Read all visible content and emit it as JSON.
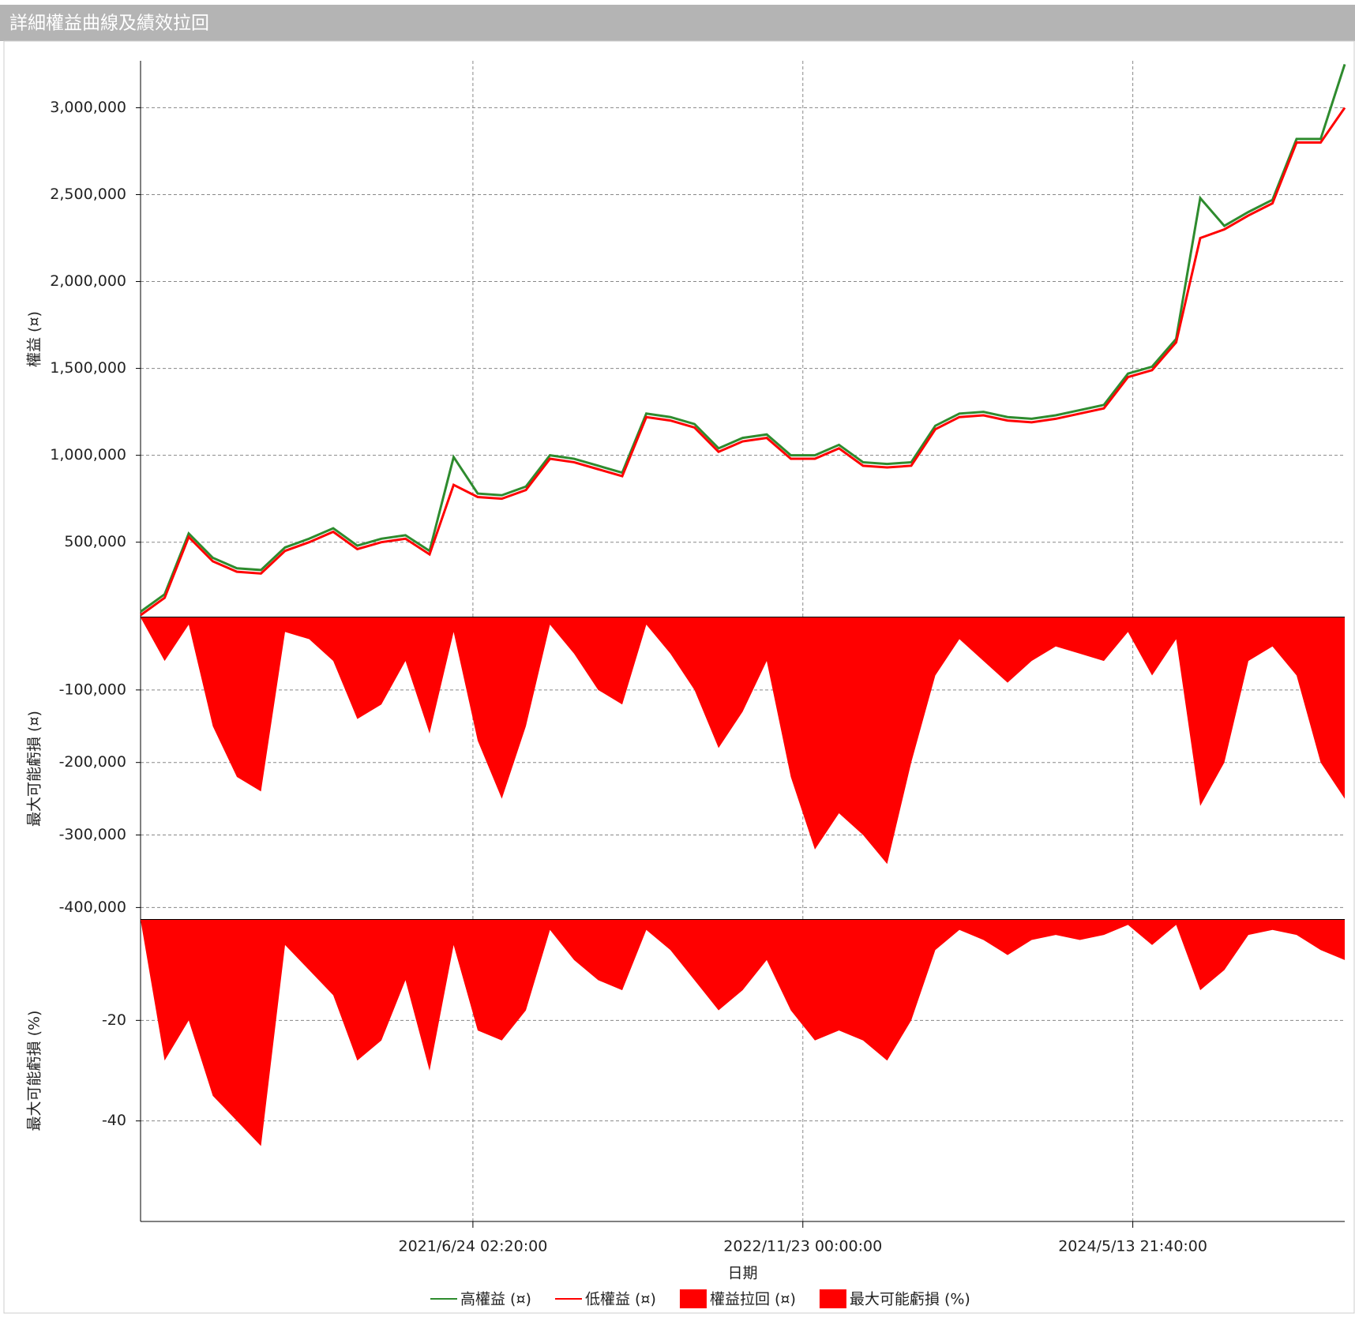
{
  "chart_data": [
    {
      "type": "line",
      "title": "詳細權益曲線及績效拉回",
      "ylabel": "權益 (¤)",
      "x": [
        0,
        2,
        4,
        6,
        8,
        10,
        12,
        14,
        16,
        18,
        20,
        22,
        24,
        26,
        28,
        30,
        32,
        34,
        36,
        38,
        40,
        42,
        44,
        46,
        48,
        50,
        52,
        54,
        56,
        58,
        60,
        62,
        64,
        66,
        68,
        70,
        72,
        74,
        76,
        78,
        80,
        82,
        84,
        86,
        88,
        90,
        92,
        94,
        96,
        98,
        100
      ],
      "xlim": [
        0,
        100
      ],
      "xticks": [
        27.6,
        55.0,
        82.4
      ],
      "ylim": [
        67000,
        3270000
      ],
      "yticks": [
        {
          "value": 500000,
          "label": "500,000"
        },
        {
          "value": 1000000,
          "label": "1,000,000"
        },
        {
          "value": 1500000,
          "label": "1,500,000"
        },
        {
          "value": 2000000,
          "label": "2,000,000"
        },
        {
          "value": 2500000,
          "label": "2,500,000"
        },
        {
          "value": 3000000,
          "label": "3,000,000"
        }
      ],
      "grid": true,
      "series": [
        {
          "name": "高權益 (¤)",
          "color": "#2e8b2e",
          "values": [
            100000,
            200000,
            550000,
            410000,
            350000,
            340000,
            470000,
            520000,
            580000,
            480000,
            520000,
            540000,
            450000,
            990000,
            780000,
            770000,
            820000,
            1000000,
            980000,
            940000,
            900000,
            1240000,
            1220000,
            1180000,
            1040000,
            1100000,
            1120000,
            1000000,
            1000000,
            1060000,
            960000,
            950000,
            960000,
            1170000,
            1240000,
            1250000,
            1220000,
            1210000,
            1230000,
            1260000,
            1290000,
            1470000,
            1510000,
            1670000,
            2480000,
            2320000,
            2400000,
            2470000,
            2820000,
            2820000,
            3250000
          ]
        },
        {
          "name": "低權益 (¤)",
          "color": "#ff0000",
          "values": [
            80000,
            180000,
            530000,
            390000,
            330000,
            320000,
            450000,
            500000,
            560000,
            460000,
            500000,
            520000,
            430000,
            830000,
            760000,
            750000,
            800000,
            980000,
            960000,
            920000,
            880000,
            1220000,
            1200000,
            1160000,
            1020000,
            1080000,
            1100000,
            980000,
            980000,
            1040000,
            940000,
            930000,
            940000,
            1150000,
            1220000,
            1230000,
            1200000,
            1190000,
            1210000,
            1240000,
            1270000,
            1450000,
            1490000,
            1650000,
            2250000,
            2300000,
            2380000,
            2450000,
            2800000,
            2800000,
            3000000
          ]
        }
      ]
    },
    {
      "type": "area",
      "ylabel": "最大可能虧損 (¤)",
      "x": [
        0,
        2,
        4,
        6,
        8,
        10,
        12,
        14,
        16,
        18,
        20,
        22,
        24,
        26,
        28,
        30,
        32,
        34,
        36,
        38,
        40,
        42,
        44,
        46,
        48,
        50,
        52,
        54,
        56,
        58,
        60,
        62,
        64,
        66,
        68,
        70,
        72,
        74,
        76,
        78,
        80,
        82,
        84,
        86,
        88,
        90,
        92,
        94,
        96,
        98,
        100
      ],
      "xlim": [
        0,
        100
      ],
      "xticks": [
        27.6,
        55.0,
        82.4
      ],
      "ylim": [
        -417000,
        0
      ],
      "yticks": [
        {
          "value": -100000,
          "label": "-100,000"
        },
        {
          "value": -200000,
          "label": "-200,000"
        },
        {
          "value": -300000,
          "label": "-300,000"
        },
        {
          "value": -400000,
          "label": "-400,000"
        }
      ],
      "grid": true,
      "series": [
        {
          "name": "權益拉回 (¤)",
          "color": "#ff0000",
          "values": [
            0,
            -60000,
            -10000,
            -150000,
            -220000,
            -240000,
            -20000,
            -30000,
            -60000,
            -140000,
            -120000,
            -60000,
            -160000,
            -20000,
            -170000,
            -250000,
            -150000,
            -10000,
            -50000,
            -100000,
            -120000,
            -10000,
            -50000,
            -100000,
            -180000,
            -130000,
            -60000,
            -220000,
            -320000,
            -270000,
            -300000,
            -340000,
            -200000,
            -80000,
            -30000,
            -60000,
            -90000,
            -60000,
            -40000,
            -50000,
            -60000,
            -20000,
            -80000,
            -30000,
            -260000,
            -200000,
            -60000,
            -40000,
            -80000,
            -200000,
            -250000
          ]
        }
      ]
    },
    {
      "type": "area",
      "ylabel": "最大可能虧損 (%)",
      "xlabel": "日期",
      "x": [
        0,
        2,
        4,
        6,
        8,
        10,
        12,
        14,
        16,
        18,
        20,
        22,
        24,
        26,
        28,
        30,
        32,
        34,
        36,
        38,
        40,
        42,
        44,
        46,
        48,
        50,
        52,
        54,
        56,
        58,
        60,
        62,
        64,
        66,
        68,
        70,
        72,
        74,
        76,
        78,
        80,
        82,
        84,
        86,
        88,
        90,
        92,
        94,
        96,
        98,
        100
      ],
      "xlim": [
        0,
        100
      ],
      "xticks": [
        {
          "value": 27.6,
          "label": "2021/6/24 02:20:00"
        },
        {
          "value": 55.0,
          "label": "2022/11/23 00:00:00"
        },
        {
          "value": 82.4,
          "label": "2024/5/13 21:40:00"
        }
      ],
      "ylim": [
        -60,
        0
      ],
      "yticks": [
        -20,
        -40
      ],
      "grid": true,
      "series": [
        {
          "name": "最大可能虧損 (%)",
          "color": "#ff0000",
          "values": [
            0,
            -28,
            -20,
            -35,
            -40,
            -45,
            -5,
            -10,
            -15,
            -28,
            -24,
            -12,
            -30,
            -5,
            -22,
            -24,
            -18,
            -2,
            -8,
            -12,
            -14,
            -2,
            -6,
            -12,
            -18,
            -14,
            -8,
            -18,
            -24,
            -22,
            -24,
            -28,
            -20,
            -6,
            -2,
            -4,
            -7,
            -4,
            -3,
            -4,
            -3,
            -1,
            -5,
            -1,
            -14,
            -10,
            -3,
            -2,
            -3,
            -6,
            -8
          ]
        }
      ]
    }
  ]
}
